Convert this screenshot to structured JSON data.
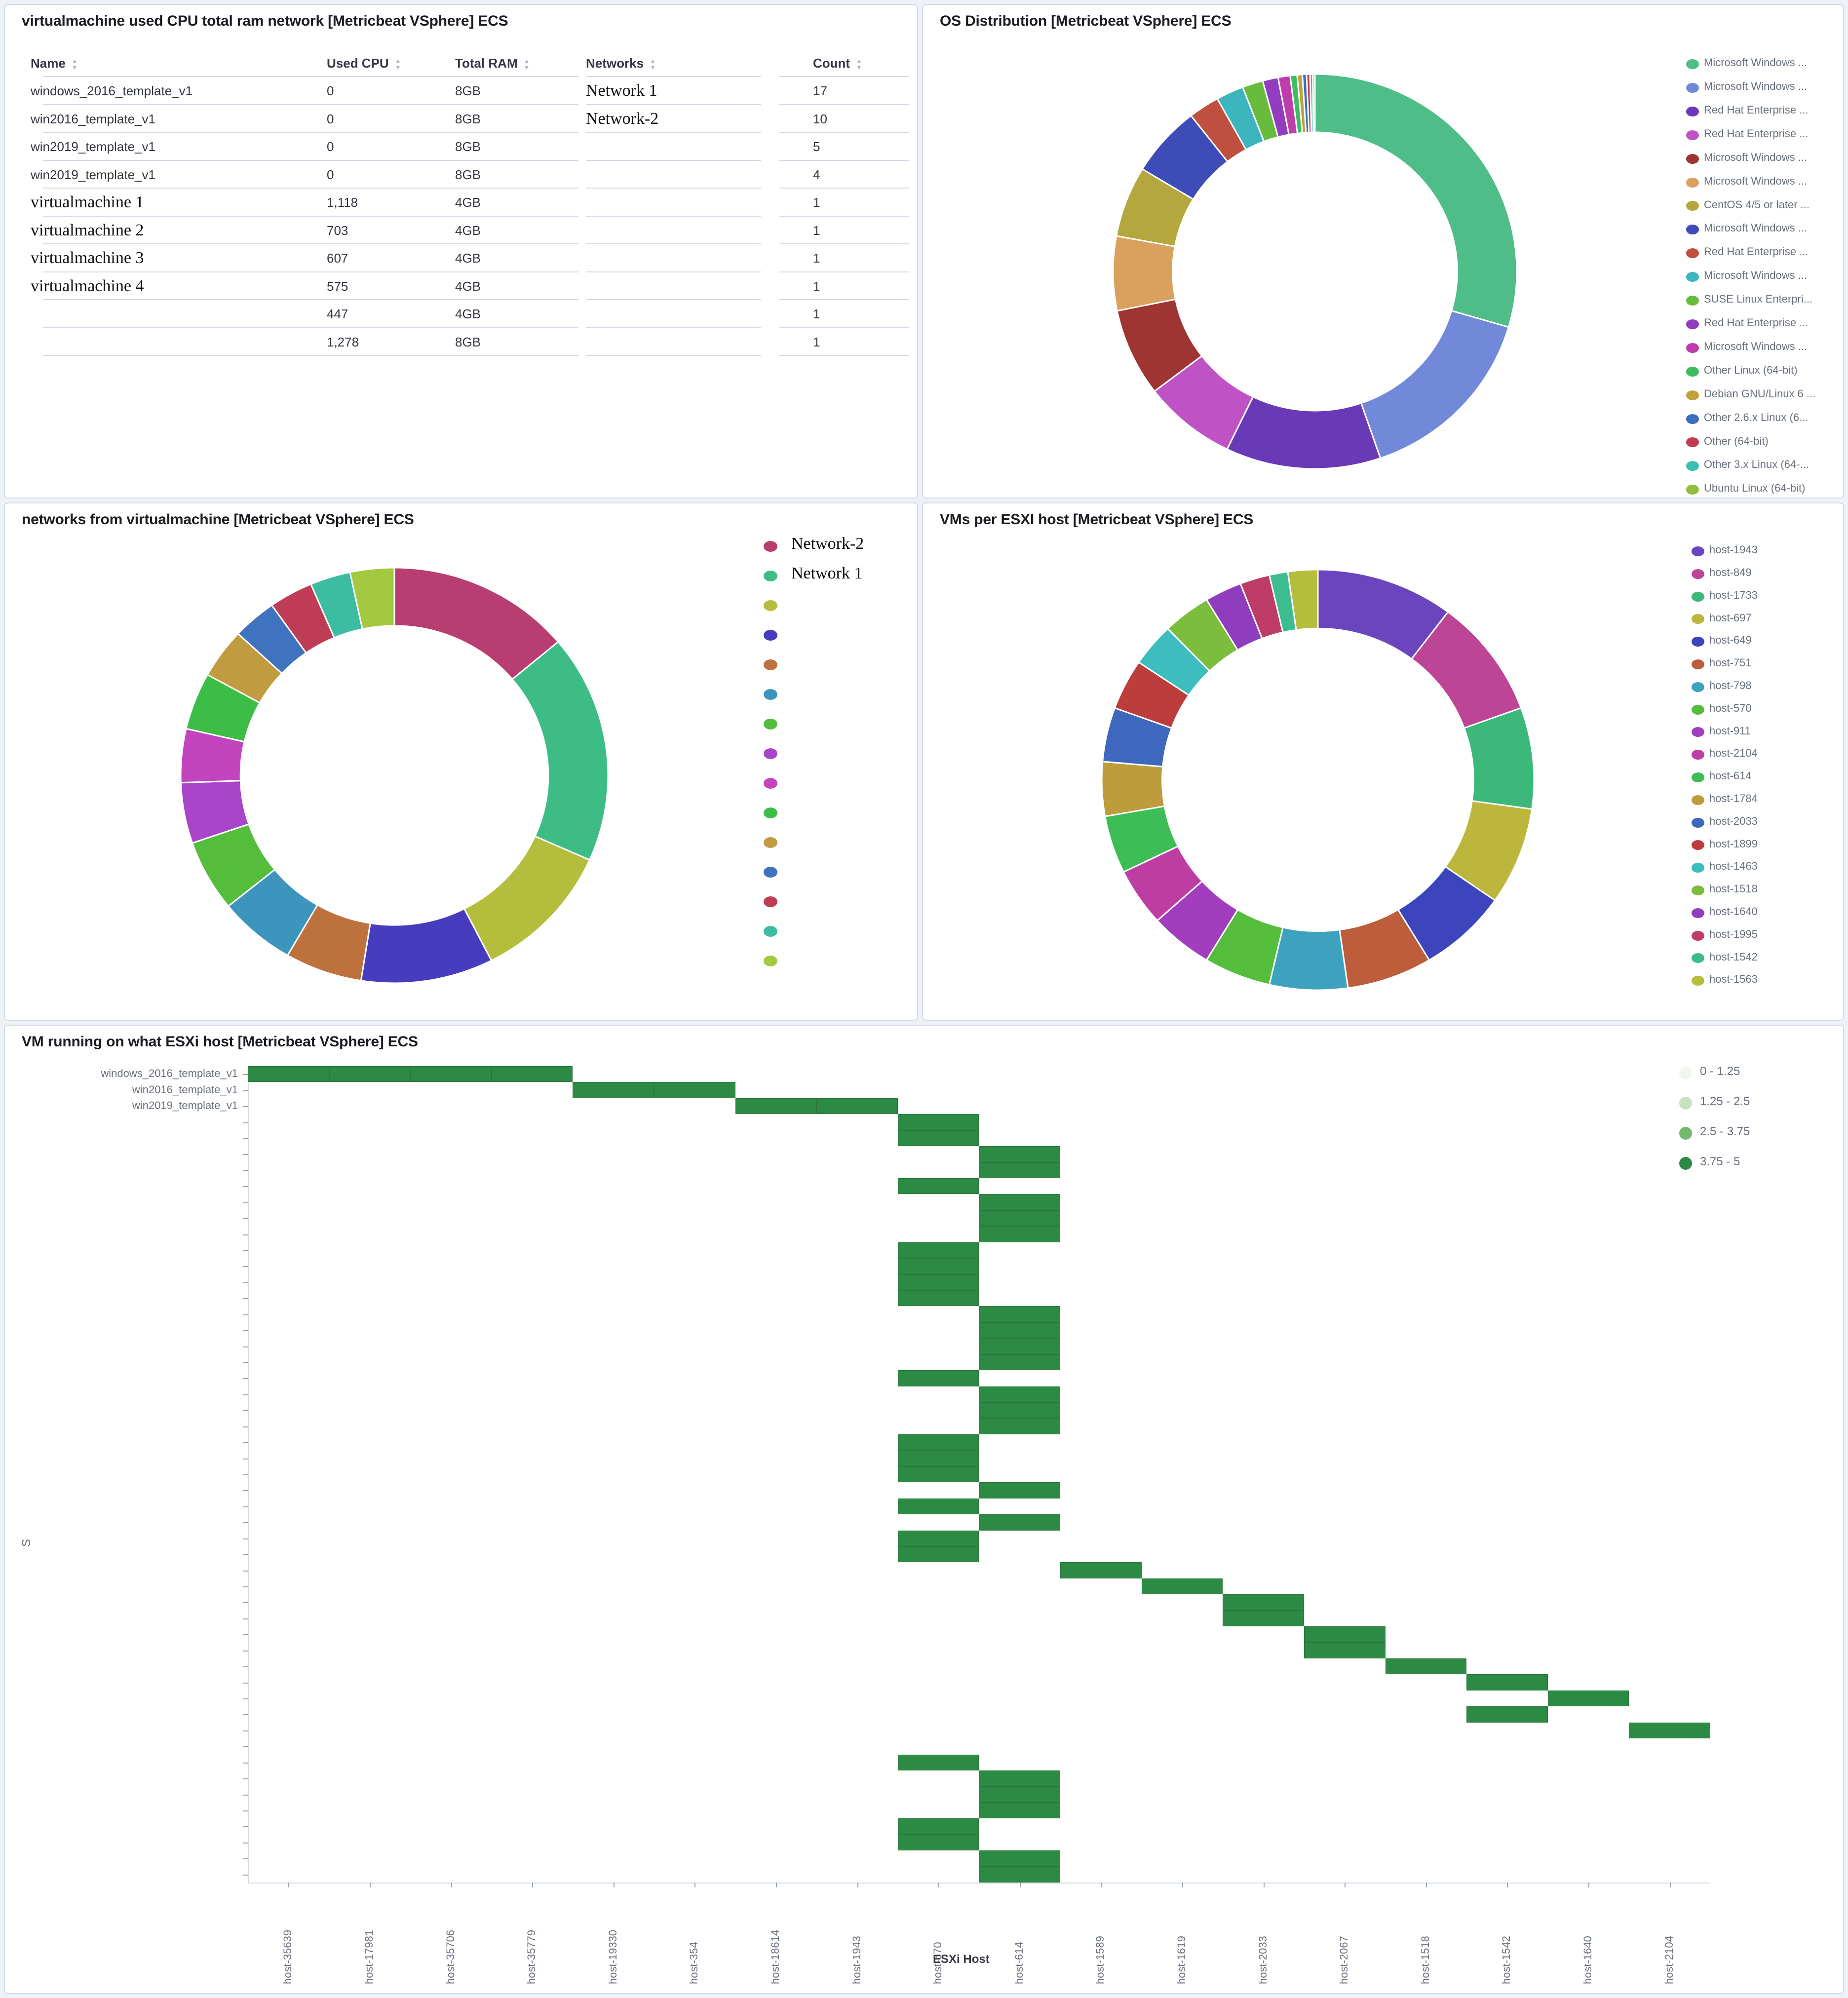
{
  "icons": {
    "sort_up": "▲",
    "sort_down": "▼",
    "legend_dot": "circle"
  },
  "table": {
    "title": "virtualmachine used CPU total ram network [Metricbeat VSphere] ECS",
    "columns": [
      {
        "key": "name",
        "label": "Name"
      },
      {
        "key": "used_cpu",
        "label": "Used CPU"
      },
      {
        "key": "total_ram",
        "label": "Total RAM"
      },
      {
        "key": "network",
        "label": "Networks"
      },
      {
        "key": "count",
        "label": "Count"
      }
    ],
    "rows": [
      {
        "name": "windows_2016_template_v1",
        "name_serif": false,
        "used_cpu": "0",
        "total_ram": "8GB",
        "network": "Network 1",
        "count": "17"
      },
      {
        "name": "win2016_template_v1",
        "name_serif": false,
        "used_cpu": "0",
        "total_ram": "8GB",
        "network": "Network-2",
        "count": "10"
      },
      {
        "name": "win2019_template_v1",
        "name_serif": false,
        "used_cpu": "0",
        "total_ram": "8GB",
        "network": "",
        "count": "5"
      },
      {
        "name": "win2019_template_v1",
        "name_serif": false,
        "used_cpu": "0",
        "total_ram": "8GB",
        "network": "",
        "count": "4"
      },
      {
        "name": "virtualmachine 1",
        "name_serif": true,
        "used_cpu": "1,118",
        "total_ram": "4GB",
        "network": "",
        "count": "1"
      },
      {
        "name": "virtualmachine 2",
        "name_serif": true,
        "used_cpu": "703",
        "total_ram": "4GB",
        "network": "",
        "count": "1"
      },
      {
        "name": "virtualmachine 3",
        "name_serif": true,
        "used_cpu": "607",
        "total_ram": "4GB",
        "network": "",
        "count": "1"
      },
      {
        "name": "virtualmachine 4",
        "name_serif": true,
        "used_cpu": "575",
        "total_ram": "4GB",
        "network": "",
        "count": "1"
      },
      {
        "name": "",
        "name_serif": false,
        "used_cpu": "447",
        "total_ram": "4GB",
        "network": "",
        "count": "1"
      },
      {
        "name": "",
        "name_serif": false,
        "used_cpu": "1,278",
        "total_ram": "8GB",
        "network": "",
        "count": "1"
      }
    ]
  },
  "chart_data": [
    {
      "type": "pie",
      "donut": true,
      "title": "OS Distribution [Metricbeat VSphere] ECS",
      "legend_position": "right",
      "labels": [
        "Microsoft Windows ...",
        "Microsoft Windows ...",
        "Red Hat Enterprise ...",
        "Red Hat Enterprise ...",
        "Microsoft Windows ...",
        "Microsoft Windows ...",
        "CentOS 4/5 or later ...",
        "Microsoft Windows ...",
        "Red Hat Enterprise ...",
        "Microsoft Windows ...",
        "SUSE Linux Enterpri...",
        "Red Hat Enterprise ...",
        "Microsoft Windows ...",
        "Other Linux (64-bit)",
        "Debian GNU/Linux 6 ...",
        "Other 2.6.x Linux (6...",
        "Other (64-bit)",
        "Other 3.x Linux (64-...",
        "Ubuntu Linux (64-bit)"
      ],
      "values": [
        107,
        55,
        45,
        27,
        26,
        22,
        21,
        21,
        9,
        8,
        6,
        4.5,
        3.5,
        2,
        1.5,
        1.2,
        1,
        0.8,
        0.6
      ],
      "colors": [
        "#4fbd88",
        "#7289d9",
        "#6a39b8",
        "#bf52c4",
        "#9e3533",
        "#d9a05e",
        "#b3a73d",
        "#3e4cb8",
        "#bf4f3e",
        "#3db5bf",
        "#68bb3c",
        "#923cbf",
        "#bf3cab",
        "#3dbd60",
        "#bfa23c",
        "#3c6ebf",
        "#bf3c50",
        "#3cbfb1",
        "#8fbf3c"
      ]
    },
    {
      "type": "pie",
      "donut": true,
      "title": "networks from virtualmachine [Metricbeat VSphere] ECS",
      "legend_position": "right",
      "labels": [
        "Network-2",
        "Network 1",
        "",
        "",
        "",
        "",
        "",
        "",
        "",
        "",
        "",
        "",
        "",
        "",
        ""
      ],
      "values": [
        50,
        64,
        39,
        36,
        21,
        21,
        20,
        17,
        15,
        16,
        14,
        12,
        12,
        11,
        12
      ],
      "colors": [
        "#b83d70",
        "#3dbd85",
        "#b5bd3c",
        "#473cbd",
        "#bd713c",
        "#3d95bd",
        "#55bd3c",
        "#a845c9",
        "#c245bf",
        "#3cbd45",
        "#c19b40",
        "#4073bf",
        "#bf3c57",
        "#3cbda1",
        "#a2c940"
      ]
    },
    {
      "type": "pie",
      "donut": true,
      "title": "VMs per ESXI host [Metricbeat VSphere] ECS",
      "legend_position": "right",
      "labels": [
        "host-1943",
        "host-849",
        "host-1733",
        "host-697",
        "host-649",
        "host-751",
        "host-798",
        "host-570",
        "host-911",
        "host-2104",
        "host-614",
        "host-1784",
        "host-2033",
        "host-1899",
        "host-1463",
        "host-1518",
        "host-1640",
        "host-1995",
        "host-1542",
        "host-1563"
      ],
      "values": [
        37,
        33,
        28,
        27,
        24,
        23,
        21,
        18,
        17,
        16,
        16,
        15,
        15,
        14,
        12,
        13,
        10,
        8,
        5,
        8
      ],
      "colors": [
        "#6b45bd",
        "#bd4595",
        "#3db87b",
        "#bcb73c",
        "#3d45bd",
        "#bd5d3c",
        "#3da2bd",
        "#55bd3c",
        "#a23dbd",
        "#bd3da2",
        "#3dbd55",
        "#bd9c3c",
        "#3d68bd",
        "#bd3d3d",
        "#3dbdbd",
        "#7bbd3c",
        "#8f3dbd",
        "#bd3d68",
        "#3dbd8f",
        "#b5bd3c"
      ]
    },
    {
      "type": "heatmap",
      "title": "VM running on what ESXi host [Metricbeat VSphere] ECS",
      "xlabel": "ESXi Host",
      "y_title_fragment": "S",
      "x_categories": [
        "host-35639",
        "host-17981",
        "host-35706",
        "host-35779",
        "host-19330",
        "host-354",
        "host-18614",
        "host-1943",
        "host-570",
        "host-614",
        "host-1589",
        "host-1619",
        "host-2033",
        "host-2067",
        "host-1518",
        "host-1542",
        "host-1640",
        "host-2104"
      ],
      "y_tick_labels": [
        "windows_2016_template_v1",
        "win2016_template_v1",
        "win2019_template_v1"
      ],
      "n_rows": 51,
      "cell_value_bucket": "3.75 - 5",
      "cell_color": "#2d8a44",
      "cells": [
        [
          1,
          1
        ],
        [
          1,
          2
        ],
        [
          1,
          3
        ],
        [
          1,
          4
        ],
        [
          2,
          5
        ],
        [
          2,
          6
        ],
        [
          3,
          7
        ],
        [
          3,
          8
        ],
        [
          4,
          9
        ],
        [
          5,
          9
        ],
        [
          6,
          10
        ],
        [
          7,
          10
        ],
        [
          8,
          9
        ],
        [
          9,
          10
        ],
        [
          10,
          10
        ],
        [
          11,
          10
        ],
        [
          12,
          9
        ],
        [
          13,
          9
        ],
        [
          14,
          9
        ],
        [
          15,
          9
        ],
        [
          16,
          10
        ],
        [
          17,
          10
        ],
        [
          18,
          10
        ],
        [
          19,
          10
        ],
        [
          20,
          9
        ],
        [
          21,
          10
        ],
        [
          22,
          10
        ],
        [
          23,
          10
        ],
        [
          24,
          9
        ],
        [
          25,
          9
        ],
        [
          26,
          9
        ],
        [
          27,
          10
        ],
        [
          28,
          9
        ],
        [
          29,
          10
        ],
        [
          30,
          9
        ],
        [
          31,
          9
        ],
        [
          32,
          11
        ],
        [
          33,
          12
        ],
        [
          34,
          13
        ],
        [
          35,
          13
        ],
        [
          36,
          14
        ],
        [
          37,
          14
        ],
        [
          38,
          15
        ],
        [
          39,
          16
        ],
        [
          40,
          17
        ],
        [
          41,
          16
        ],
        [
          42,
          18
        ],
        [
          44,
          9
        ],
        [
          45,
          10
        ],
        [
          46,
          10
        ],
        [
          47,
          10
        ],
        [
          48,
          9
        ],
        [
          49,
          9
        ],
        [
          50,
          10
        ],
        [
          51,
          10
        ]
      ],
      "legend": [
        {
          "label": "0 - 1.25",
          "color": "#f1f7ef"
        },
        {
          "label": "1.25 - 2.5",
          "color": "#c6e2be"
        },
        {
          "label": "2.5 - 3.75",
          "color": "#73ba6e"
        },
        {
          "label": "3.75 - 5",
          "color": "#2d8a44"
        }
      ]
    }
  ]
}
